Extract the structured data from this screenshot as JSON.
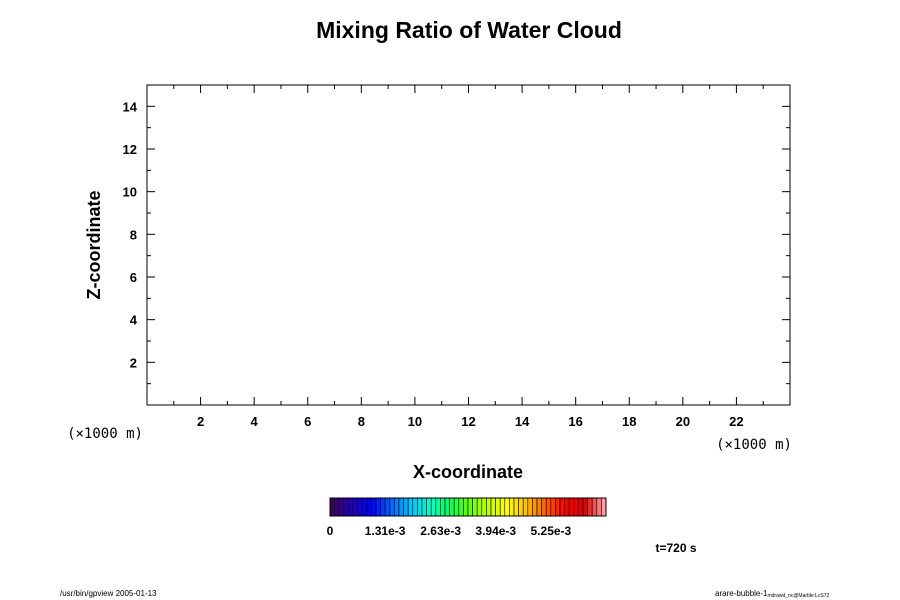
{
  "chart_data": {
    "type": "heatmap",
    "title": "Mixing Ratio of Water Cloud",
    "xlabel": "X-coordinate",
    "ylabel": "Z-coordinate",
    "x_unit": "(×1000 m)",
    "y_unit": "(×1000 m)",
    "xlim": [
      0,
      24
    ],
    "ylim": [
      0,
      15
    ],
    "x_ticks": [
      2,
      4,
      6,
      8,
      10,
      12,
      14,
      16,
      18,
      20,
      22
    ],
    "y_ticks": [
      2,
      4,
      6,
      8,
      10,
      12,
      14
    ],
    "x_minor_step": 1,
    "y_minor_step": 1,
    "grid": false,
    "values": [],
    "colorbar": {
      "min": 0,
      "max": 0.00656,
      "ticks": [
        "0",
        "1.31e-3",
        "2.63e-3",
        "3.94e-3",
        "5.25e-3"
      ],
      "tick_values": [
        0,
        0.00131,
        0.00263,
        0.00394,
        0.00525
      ],
      "colormap": "rainbow",
      "palette": [
        "#400060",
        "#2000c0",
        "#0000ff",
        "#0060ff",
        "#00c0ff",
        "#00ffd0",
        "#00ff60",
        "#60ff00",
        "#c0ff00",
        "#ffff00",
        "#ffc000",
        "#ff6000",
        "#ff0000",
        "#e00000",
        "#ffa0a0"
      ]
    },
    "time_label": "t=720 s"
  },
  "footer": {
    "left": "/usr/bin/gpview 2005-01-13",
    "right_main": "arare-bubble-1",
    "right_sub": "mdrawd_nc@Marble:LcS72"
  }
}
